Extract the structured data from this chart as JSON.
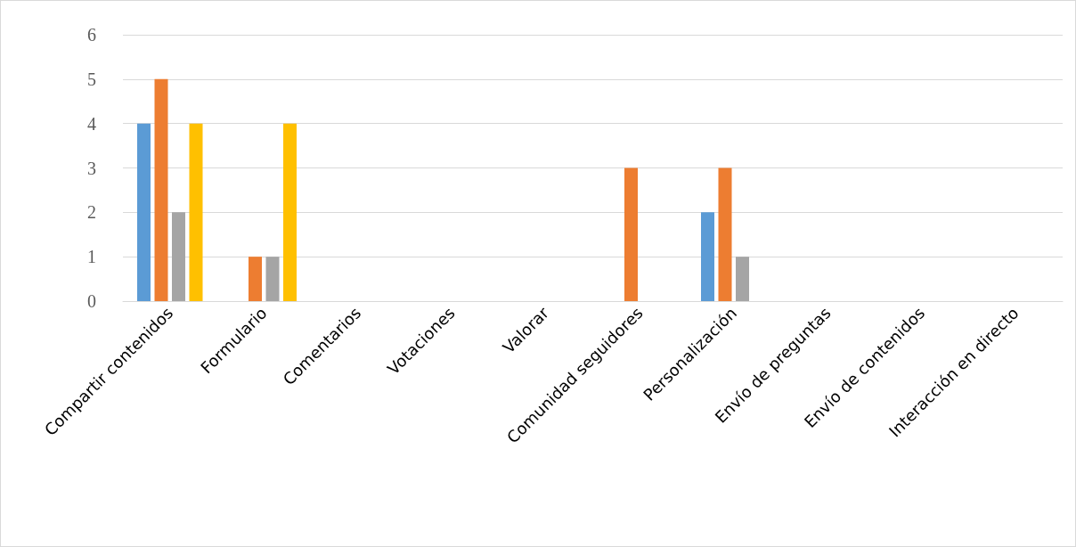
{
  "chart_data": {
    "type": "bar",
    "categories": [
      "Compartir contenidos",
      "Formulario",
      "Comentarios",
      "Votaciones",
      "Valorar",
      "Comunidad seguidores",
      "Personalización",
      "Envío de preguntas",
      "Envío de contenidos",
      "Interacción en directo"
    ],
    "series": [
      {
        "color": "#5b9bd5",
        "values": [
          4,
          0,
          0,
          0,
          0,
          0,
          2,
          0,
          0,
          0
        ]
      },
      {
        "color": "#ed7d31",
        "values": [
          5,
          1,
          0,
          0,
          0,
          3,
          3,
          0,
          0,
          0
        ]
      },
      {
        "color": "#a5a5a5",
        "values": [
          2,
          1,
          0,
          0,
          0,
          0,
          1,
          0,
          0,
          0
        ]
      },
      {
        "color": "#ffc000",
        "values": [
          4,
          4,
          0,
          0,
          0,
          0,
          0,
          0,
          0,
          0
        ]
      }
    ],
    "ylim": [
      0,
      6
    ],
    "yticks": [
      0,
      1,
      2,
      3,
      4,
      5,
      6
    ],
    "grid": "y"
  }
}
